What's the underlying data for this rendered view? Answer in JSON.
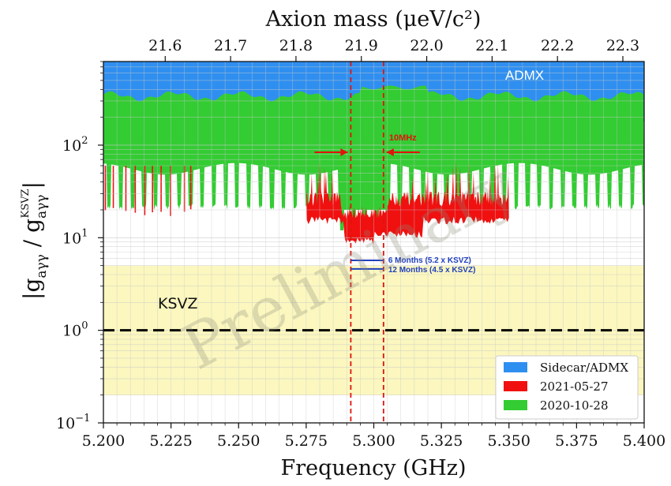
{
  "chart_data": {
    "type": "area",
    "title": "",
    "xlabel": "Frequency (GHz)",
    "x2label": "Axion mass (μeV/c²)",
    "ylabel_main": "|g",
    "ylabel_sub": "aγγ",
    "ylabel_sep": " / ",
    "ylabel_den_main": "g",
    "ylabel_den_sub": "aγγ",
    "ylabel_den_sup": "KSVZ",
    "ylabel_end": "|",
    "xlim": [
      5.2,
      5.4
    ],
    "ylim": [
      0.1,
      800
    ],
    "yscale": "log",
    "x_ticks": [
      "5.200",
      "5.225",
      "5.250",
      "5.275",
      "5.300",
      "5.325",
      "5.350",
      "5.375",
      "5.400"
    ],
    "x_tick_values": [
      5.2,
      5.225,
      5.25,
      5.275,
      5.3,
      5.325,
      5.35,
      5.375,
      5.4
    ],
    "x2_ticks": [
      "21.6",
      "21.7",
      "21.8",
      "21.9",
      "22.0",
      "22.1",
      "22.2",
      "22.3"
    ],
    "x2_tick_values": [
      21.6,
      21.7,
      21.8,
      21.9,
      22.0,
      22.1,
      22.2,
      22.3
    ],
    "y_ticks": [
      {
        "base": "10",
        "exp": "−1",
        "value": 0.1
      },
      {
        "base": "10",
        "exp": "0",
        "value": 1
      },
      {
        "base": "10",
        "exp": "1",
        "value": 10
      },
      {
        "base": "10",
        "exp": "2",
        "value": 100
      }
    ],
    "grid": true,
    "legend_position": "bottom-right",
    "series": [
      {
        "name": "Sidecar/ADMX",
        "color": "#2f8ff0",
        "x_range": [
          5.2,
          5.4
        ],
        "y_lower": 320
      },
      {
        "name": "2021-05-27",
        "color": "#f01010",
        "x_range": [
          5.275,
          5.35
        ],
        "y_lower": 9
      },
      {
        "name": "2020-10-28",
        "color": "#33cc33",
        "x_range": [
          5.2,
          5.4
        ],
        "y_upper": 350,
        "y_lower": 20
      }
    ],
    "ksvz_band": {
      "label": "KSVZ",
      "y_range": [
        0.2,
        5
      ],
      "color": "#fbf7bf",
      "ksvz_line": 1
    },
    "admx_label": "ADMX",
    "vlines": [
      5.2915,
      5.3036
    ],
    "annotations": {
      "bandwidth": "10MHz",
      "six_months": "6 Months (5.2 x KSVZ)",
      "six_months_value": 5.7,
      "twelve_months": "12 Months (4.5 x KSVZ)",
      "twelve_months_value": 4.6
    },
    "watermark": "Preliminary"
  }
}
